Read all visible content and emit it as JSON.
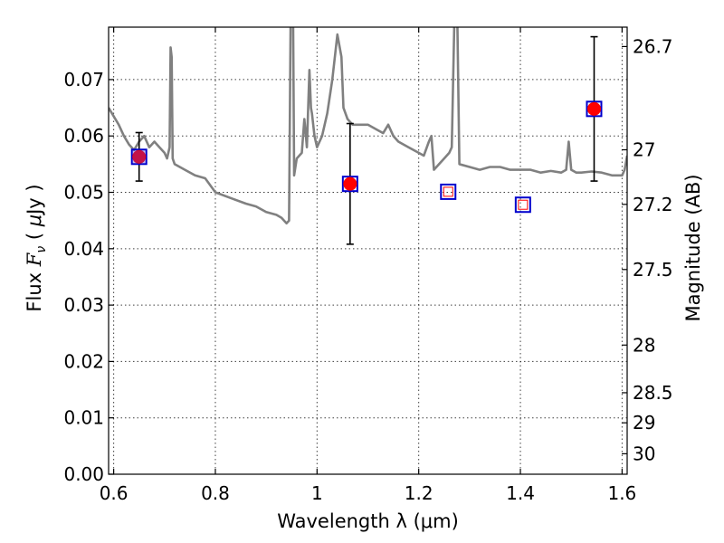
{
  "chart_data": {
    "type": "line",
    "xlabel": "Wavelength  λ (μm)",
    "ylabel_parts": [
      "Flux  ",
      "F",
      "ν",
      "  (  ",
      "μ",
      "Jy )"
    ],
    "y2label": "Magnitude (AB)",
    "xlim": [
      0.59,
      1.61
    ],
    "ylim": [
      0.0,
      0.0793
    ],
    "grid": true,
    "x_ticks": [
      0.6,
      0.8,
      1.0,
      1.2,
      1.4,
      1.6
    ],
    "x_tick_labels": [
      "0.6",
      "0.8",
      "1",
      "1.2",
      "1.4",
      "1.6"
    ],
    "y_ticks": [
      0.0,
      0.01,
      0.02,
      0.03,
      0.04,
      0.05,
      0.06,
      0.07
    ],
    "y_tick_labels": [
      "0.00",
      "0.01",
      "0.02",
      "0.03",
      "0.04",
      "0.05",
      "0.06",
      "0.07"
    ],
    "mag_ticks": [
      26.7,
      27,
      27.2,
      27.5,
      28,
      28.5,
      29,
      30
    ],
    "mag_tick_labels": [
      "26.7",
      "27",
      "27.2",
      "27.5",
      "28",
      "28.5",
      "29",
      "30"
    ],
    "model_spectrum": {
      "color": "#808080",
      "x": [
        0.59,
        0.6,
        0.61,
        0.62,
        0.63,
        0.64,
        0.65,
        0.66,
        0.67,
        0.68,
        0.69,
        0.7,
        0.705,
        0.71,
        0.712,
        0.714,
        0.716,
        0.718,
        0.72,
        0.74,
        0.76,
        0.78,
        0.8,
        0.83,
        0.86,
        0.88,
        0.9,
        0.92,
        0.93,
        0.94,
        0.945,
        0.948,
        0.95,
        0.953,
        0.955,
        0.96,
        0.97,
        0.975,
        0.978,
        0.98,
        0.985,
        0.988,
        0.99,
        0.995,
        1.0,
        1.005,
        1.01,
        1.02,
        1.03,
        1.04,
        1.048,
        1.052,
        1.06,
        1.065,
        1.07,
        1.08,
        1.1,
        1.12,
        1.13,
        1.14,
        1.15,
        1.16,
        1.18,
        1.2,
        1.21,
        1.22,
        1.225,
        1.23,
        1.24,
        1.25,
        1.26,
        1.265,
        1.27,
        1.273,
        1.276,
        1.28,
        1.3,
        1.32,
        1.34,
        1.36,
        1.38,
        1.4,
        1.42,
        1.44,
        1.46,
        1.48,
        1.49,
        1.495,
        1.5,
        1.51,
        1.52,
        1.54,
        1.56,
        1.58,
        1.6,
        1.605,
        1.61
      ],
      "y": [
        0.065,
        0.0635,
        0.062,
        0.06,
        0.0585,
        0.0575,
        0.059,
        0.06,
        0.058,
        0.059,
        0.058,
        0.057,
        0.056,
        0.058,
        0.0757,
        0.074,
        0.056,
        0.0555,
        0.055,
        0.054,
        0.053,
        0.0525,
        0.05,
        0.049,
        0.048,
        0.0475,
        0.0465,
        0.046,
        0.0455,
        0.0445,
        0.045,
        0.08,
        0.08,
        0.08,
        0.053,
        0.056,
        0.057,
        0.063,
        0.06,
        0.058,
        0.0717,
        0.065,
        0.064,
        0.06,
        0.058,
        0.059,
        0.06,
        0.064,
        0.07,
        0.078,
        0.074,
        0.065,
        0.063,
        0.0625,
        0.062,
        0.062,
        0.062,
        0.061,
        0.0605,
        0.062,
        0.06,
        0.059,
        0.058,
        0.057,
        0.0565,
        0.059,
        0.06,
        0.054,
        0.055,
        0.056,
        0.057,
        0.058,
        0.08,
        0.08,
        0.08,
        0.055,
        0.0545,
        0.054,
        0.0545,
        0.0545,
        0.054,
        0.054,
        0.054,
        0.0535,
        0.0538,
        0.0535,
        0.054,
        0.059,
        0.054,
        0.0535,
        0.0535,
        0.0537,
        0.0535,
        0.053,
        0.053,
        0.054,
        0.0565
      ]
    },
    "observed_fluxes": {
      "color": "#ff0000",
      "x": [
        0.65,
        1.065,
        1.545
      ],
      "y": [
        0.0563,
        0.0515,
        0.0648
      ],
      "err_low": [
        0.0043,
        0.0107,
        0.0128
      ],
      "err_high": [
        0.0043,
        0.0107,
        0.0128
      ]
    },
    "model_band_fluxes": {
      "color": "#0000cc",
      "x": [
        0.65,
        1.065,
        1.258,
        1.405,
        1.545
      ],
      "y": [
        0.0563,
        0.0515,
        0.0501,
        0.0478,
        0.0648
      ]
    }
  }
}
